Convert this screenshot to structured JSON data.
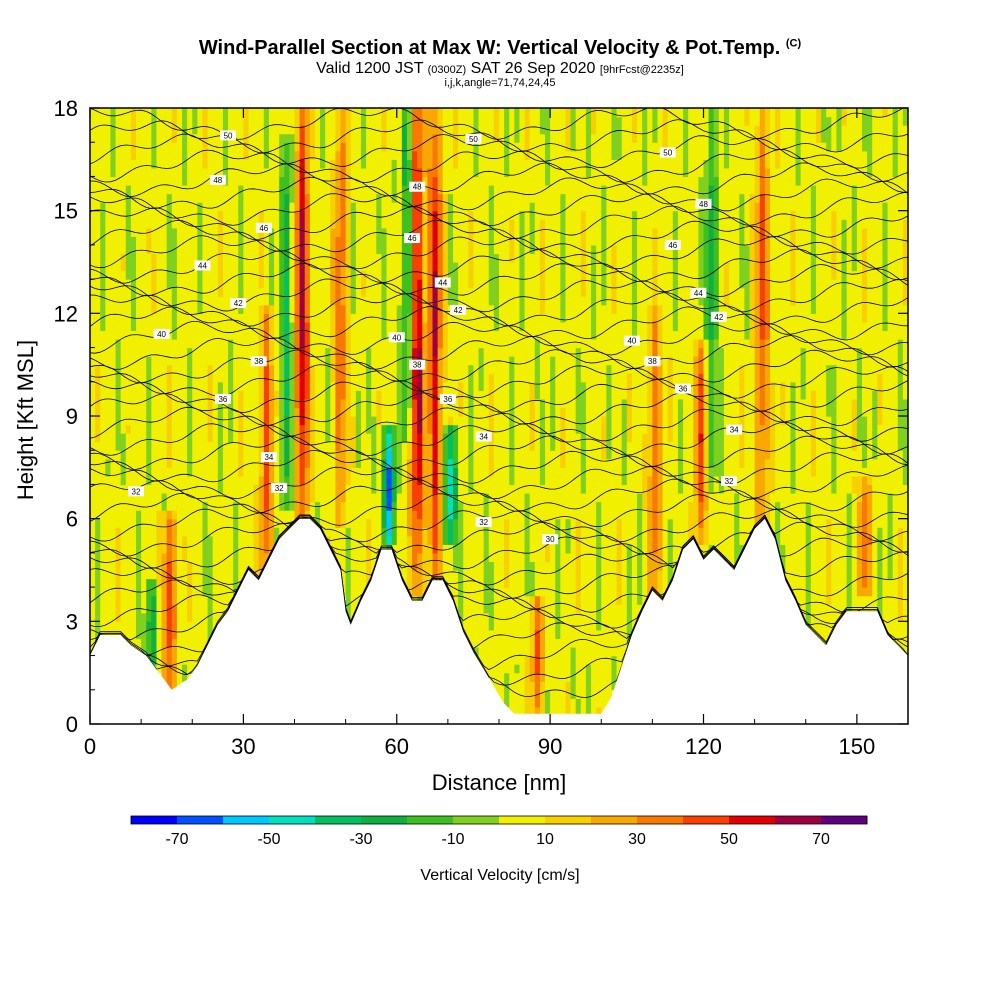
{
  "title": {
    "main": "Wind-Parallel Section at Max W: Vertical Velocity & Pot.Temp.",
    "main_suffix": "(C)",
    "valid_prefix": "Valid 1200 JST",
    "valid_zulu": "(0300Z)",
    "valid_date": "SAT 26 Sep 2020",
    "forecast": "[9hrFcst@2235z]",
    "indices": "i,j,k,angle=71,74,24,45"
  },
  "chart_data": {
    "type": "heatmap",
    "xlabel": "Distance [nm]",
    "ylabel": "Height [Kft MSL]",
    "xlim": [
      0,
      160
    ],
    "ylim": [
      0,
      18
    ],
    "x_ticks": [
      "0",
      "30",
      "60",
      "90",
      "120",
      "150"
    ],
    "y_ticks": [
      "0",
      "3",
      "6",
      "9",
      "12",
      "15",
      "18"
    ],
    "colorbar": {
      "title": "Vertical Velocity [cm/s]",
      "tick_labels": [
        "-70",
        "-50",
        "-30",
        "-10",
        "10",
        "30",
        "50",
        "70"
      ],
      "bins": [
        -80,
        -70,
        -60,
        -50,
        -40,
        -30,
        -20,
        -10,
        0,
        10,
        20,
        30,
        40,
        50,
        60,
        70,
        80
      ],
      "colors": [
        "#0000ff",
        "#0050ff",
        "#00c8ff",
        "#00e0c0",
        "#00c060",
        "#10b040",
        "#40c020",
        "#80d020",
        "#f0f000",
        "#f8d000",
        "#f8a800",
        "#f87800",
        "#f84000",
        "#e00000",
        "#a00040",
        "#600080"
      ]
    },
    "terrain_kft": [
      [
        0,
        2.0
      ],
      [
        2,
        2.6
      ],
      [
        6,
        2.6
      ],
      [
        8,
        2.3
      ],
      [
        11,
        2.0
      ],
      [
        14,
        1.4
      ],
      [
        16,
        1.0
      ],
      [
        19,
        1.3
      ],
      [
        21,
        1.7
      ],
      [
        23,
        2.3
      ],
      [
        25,
        2.9
      ],
      [
        27,
        3.3
      ],
      [
        29,
        3.9
      ],
      [
        31,
        4.5
      ],
      [
        33,
        4.2
      ],
      [
        35,
        4.8
      ],
      [
        37,
        5.4
      ],
      [
        39,
        5.7
      ],
      [
        41,
        6.0
      ],
      [
        43,
        6.0
      ],
      [
        45,
        5.7
      ],
      [
        47,
        5.1
      ],
      [
        49,
        4.5
      ],
      [
        50,
        3.3
      ],
      [
        51,
        2.9
      ],
      [
        53,
        3.6
      ],
      [
        55,
        4.2
      ],
      [
        57,
        5.1
      ],
      [
        59,
        5.1
      ],
      [
        61,
        4.2
      ],
      [
        63,
        3.6
      ],
      [
        65,
        3.6
      ],
      [
        67,
        4.2
      ],
      [
        69,
        4.2
      ],
      [
        71,
        3.6
      ],
      [
        73,
        2.7
      ],
      [
        75,
        2.1
      ],
      [
        77,
        1.6
      ],
      [
        79,
        1.1
      ],
      [
        81,
        0.6
      ],
      [
        83,
        0.3
      ],
      [
        85,
        0.3
      ],
      [
        88,
        0.3
      ],
      [
        91,
        0.3
      ],
      [
        94,
        0.3
      ],
      [
        97,
        0.3
      ],
      [
        100,
        0.3
      ],
      [
        102,
        0.8
      ],
      [
        104,
        1.7
      ],
      [
        106,
        2.6
      ],
      [
        108,
        3.3
      ],
      [
        110,
        3.9
      ],
      [
        112,
        3.6
      ],
      [
        114,
        4.2
      ],
      [
        116,
        5.1
      ],
      [
        118,
        5.4
      ],
      [
        120,
        4.8
      ],
      [
        122,
        5.1
      ],
      [
        124,
        4.8
      ],
      [
        126,
        4.5
      ],
      [
        128,
        5.1
      ],
      [
        130,
        5.7
      ],
      [
        132,
        6.0
      ],
      [
        134,
        5.4
      ],
      [
        136,
        4.2
      ],
      [
        138,
        3.6
      ],
      [
        140,
        2.9
      ],
      [
        142,
        2.6
      ],
      [
        144,
        2.3
      ],
      [
        146,
        2.9
      ],
      [
        148,
        3.3
      ],
      [
        151,
        3.3
      ],
      [
        154,
        3.3
      ],
      [
        156,
        2.6
      ],
      [
        158,
        2.3
      ],
      [
        160,
        2.0
      ]
    ],
    "updrafts": [
      {
        "x": 15.5,
        "base": 1.2,
        "top": 6.0,
        "peak": 45
      },
      {
        "x": 34.5,
        "base": 4.5,
        "top": 12.0,
        "peak": 40
      },
      {
        "x": 41.5,
        "base": 6.0,
        "top": 18.0,
        "peak": 60
      },
      {
        "x": 64.0,
        "base": 4.0,
        "top": 18.0,
        "peak": 60
      },
      {
        "x": 67.5,
        "base": 4.5,
        "top": 18.0,
        "peak": 55
      },
      {
        "x": 49.0,
        "base": 6.0,
        "top": 18.0,
        "peak": 35
      },
      {
        "x": 87.5,
        "base": 0.5,
        "top": 3.5,
        "peak": 35
      },
      {
        "x": 110.5,
        "base": 4.0,
        "top": 12.0,
        "peak": 35
      },
      {
        "x": 119.5,
        "base": 5.5,
        "top": 11.0,
        "peak": 40
      },
      {
        "x": 131.5,
        "base": 6.0,
        "top": 18.0,
        "peak": 40
      },
      {
        "x": 151.5,
        "base": 4.0,
        "top": 7.0,
        "peak": 35
      }
    ],
    "downdrafts": [
      {
        "x": 12.0,
        "base": 2.0,
        "top": 4.0,
        "peak": -35
      },
      {
        "x": 58.5,
        "base": 5.5,
        "top": 8.5,
        "peak": -65
      },
      {
        "x": 70.5,
        "base": 5.5,
        "top": 8.5,
        "peak": -55
      },
      {
        "x": 38.5,
        "base": 6.5,
        "top": 17.0,
        "peak": -35
      },
      {
        "x": 62.0,
        "base": 8.5,
        "top": 18.0,
        "peak": -35
      },
      {
        "x": 121.5,
        "base": 7.0,
        "top": 18.0,
        "peak": -30
      }
    ],
    "theta_contours": {
      "labels": [
        {
          "text": "50",
          "x": 27,
          "y": 17.2
        },
        {
          "text": "50",
          "x": 75,
          "y": 17.1
        },
        {
          "text": "50",
          "x": 113,
          "y": 16.7
        },
        {
          "text": "48",
          "x": 25,
          "y": 15.9
        },
        {
          "text": "48",
          "x": 64,
          "y": 15.7
        },
        {
          "text": "48",
          "x": 120,
          "y": 15.2
        },
        {
          "text": "46",
          "x": 34,
          "y": 14.5
        },
        {
          "text": "46",
          "x": 63,
          "y": 14.2
        },
        {
          "text": "46",
          "x": 114,
          "y": 14.0
        },
        {
          "text": "44",
          "x": 22,
          "y": 13.4
        },
        {
          "text": "44",
          "x": 69,
          "y": 12.9
        },
        {
          "text": "44",
          "x": 119,
          "y": 12.6
        },
        {
          "text": "42",
          "x": 29,
          "y": 12.3
        },
        {
          "text": "42",
          "x": 72,
          "y": 12.1
        },
        {
          "text": "42",
          "x": 123,
          "y": 11.9
        },
        {
          "text": "40",
          "x": 14,
          "y": 11.4
        },
        {
          "text": "40",
          "x": 60,
          "y": 11.3
        },
        {
          "text": "40",
          "x": 106,
          "y": 11.2
        },
        {
          "text": "38",
          "x": 33,
          "y": 10.6
        },
        {
          "text": "38",
          "x": 64,
          "y": 10.5
        },
        {
          "text": "38",
          "x": 110,
          "y": 10.6
        },
        {
          "text": "36",
          "x": 26,
          "y": 9.5
        },
        {
          "text": "36",
          "x": 70,
          "y": 9.5
        },
        {
          "text": "36",
          "x": 116,
          "y": 9.8
        },
        {
          "text": "34",
          "x": 35,
          "y": 7.8
        },
        {
          "text": "34",
          "x": 77,
          "y": 8.4
        },
        {
          "text": "34",
          "x": 126,
          "y": 8.6
        },
        {
          "text": "32",
          "x": 9,
          "y": 6.8
        },
        {
          "text": "32",
          "x": 37,
          "y": 6.9
        },
        {
          "text": "32",
          "x": 77,
          "y": 5.9
        },
        {
          "text": "32",
          "x": 125,
          "y": 7.1
        },
        {
          "text": "30",
          "x": 90,
          "y": 5.4
        }
      ]
    }
  }
}
